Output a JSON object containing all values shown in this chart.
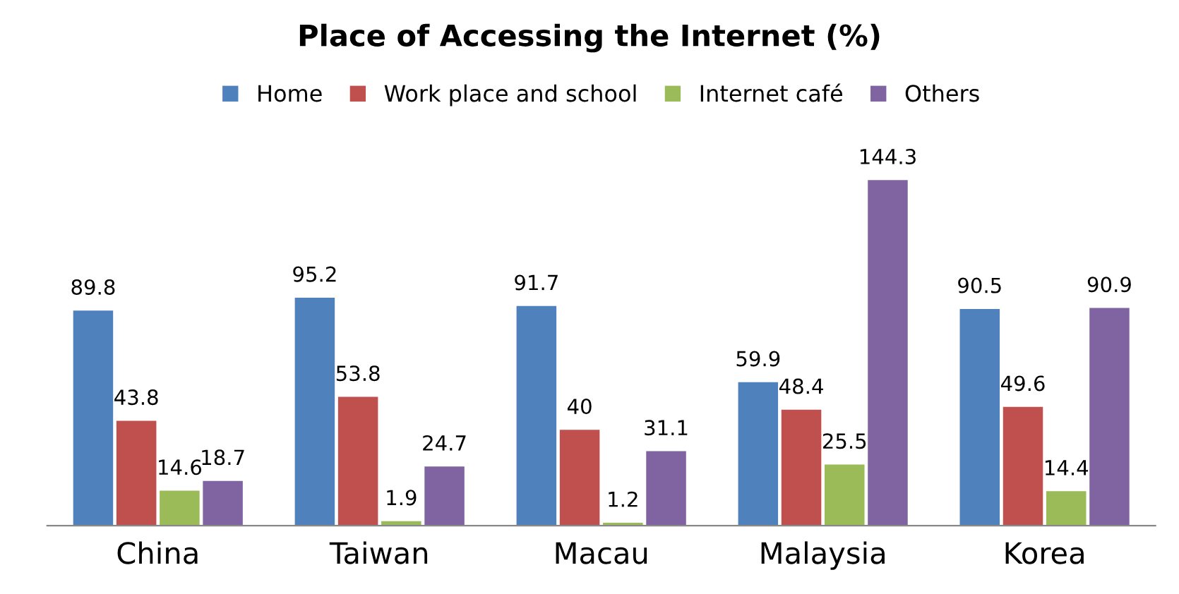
{
  "chart_data": {
    "type": "bar",
    "title": "Place of Accessing the Internet (%)",
    "categories": [
      "China",
      "Taiwan",
      "Macau",
      "Malaysia",
      "Korea"
    ],
    "series": [
      {
        "name": "Home",
        "color": "#4f81bd",
        "values": [
          89.8,
          95.2,
          91.7,
          59.9,
          90.5
        ]
      },
      {
        "name": "Work place and school",
        "color": "#c0504d",
        "values": [
          43.8,
          53.8,
          40,
          48.4,
          49.6
        ]
      },
      {
        "name": "Internet café",
        "color": "#9bbb59",
        "values": [
          14.6,
          1.9,
          1.2,
          25.5,
          14.4
        ]
      },
      {
        "name": "Others",
        "color": "#8064a2",
        "values": [
          18.7,
          24.7,
          31.1,
          144.3,
          90.9
        ]
      }
    ],
    "data_labels": true,
    "legend": "top",
    "grid": false,
    "tick_labels": "x"
  }
}
